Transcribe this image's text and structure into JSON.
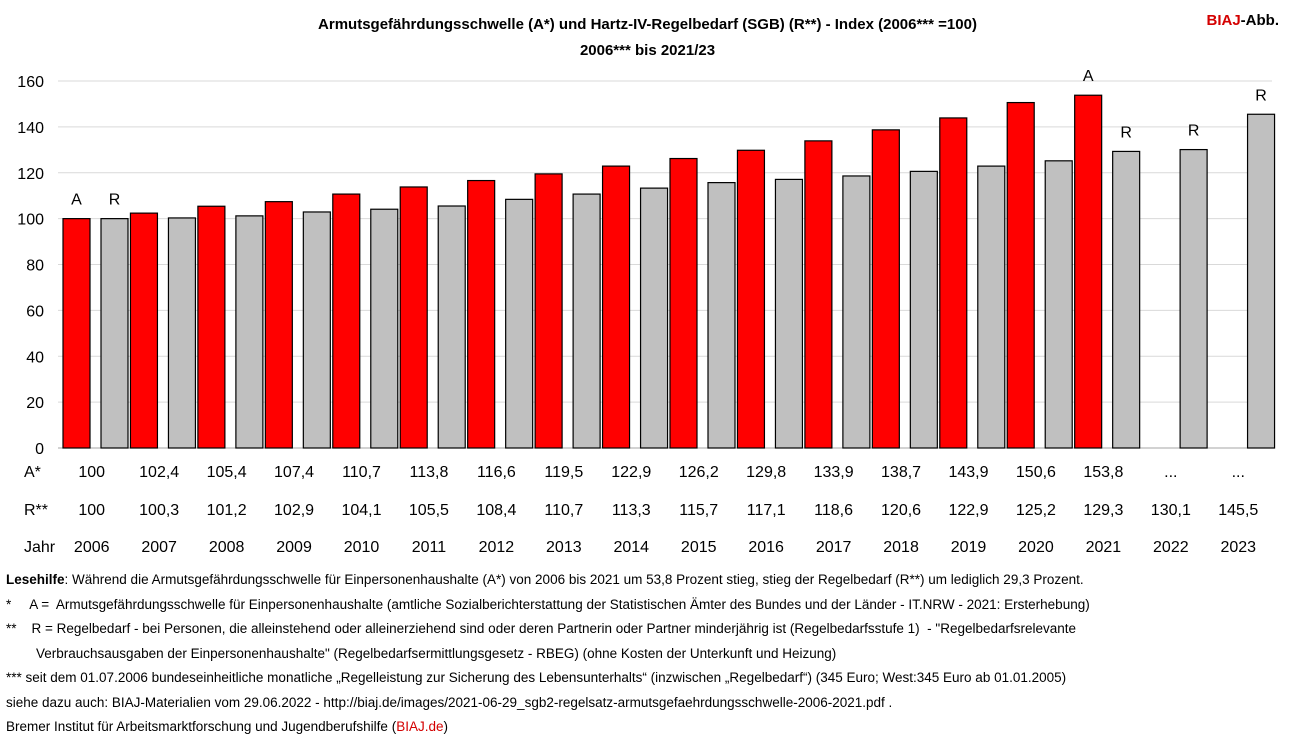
{
  "header": {
    "title_line1": "Armutsgefährdungsschwelle (A*) und Hartz-IV-Regelbedarf (SGB) (R**) - Index (2006*** =100)",
    "title_line2": "2006*** bis 2021/23",
    "logo_red": "BIAJ",
    "logo_rest": "-Abb."
  },
  "chart_data": {
    "type": "bar",
    "categories": [
      "2006",
      "2007",
      "2008",
      "2009",
      "2010",
      "2011",
      "2012",
      "2013",
      "2014",
      "2015",
      "2016",
      "2017",
      "2018",
      "2019",
      "2020",
      "2021",
      "2022",
      "2023"
    ],
    "series": [
      {
        "name": "A",
        "color": "#ff0000",
        "values": [
          100,
          102.4,
          105.4,
          107.4,
          110.7,
          113.8,
          116.6,
          119.5,
          122.9,
          126.2,
          129.8,
          133.9,
          138.7,
          143.9,
          150.6,
          153.8,
          null,
          null
        ]
      },
      {
        "name": "R",
        "color": "#c0c0c0",
        "values": [
          100,
          100.3,
          101.2,
          102.9,
          104.1,
          105.5,
          108.4,
          110.7,
          113.3,
          115.7,
          117.1,
          118.6,
          120.6,
          122.9,
          125.2,
          129.3,
          130.1,
          145.5
        ]
      }
    ],
    "ylim": [
      0,
      160
    ],
    "yticks": [
      "0",
      "20",
      "40",
      "60",
      "80",
      "100",
      "120",
      "140",
      "160"
    ],
    "grid": true,
    "table_labels": {
      "a": "A*",
      "r": "R**",
      "year": "Jahr"
    },
    "a_labels": [
      "100",
      "102,4",
      "105,4",
      "107,4",
      "110,7",
      "113,8",
      "116,6",
      "119,5",
      "122,9",
      "126,2",
      "129,8",
      "133,9",
      "138,7",
      "143,9",
      "150,6",
      "153,8",
      "...",
      "..."
    ],
    "r_labels": [
      "100",
      "100,3",
      "101,2",
      "102,9",
      "104,1",
      "105,5",
      "108,4",
      "110,7",
      "113,3",
      "115,7",
      "117,1",
      "118,6",
      "120,6",
      "122,9",
      "125,2",
      "129,3",
      "130,1",
      "145,5"
    ],
    "annotations": [
      {
        "text": "A",
        "category": "2006",
        "series": "A"
      },
      {
        "text": "R",
        "category": "2006",
        "series": "R"
      },
      {
        "text": "A",
        "category": "2021",
        "series": "A"
      },
      {
        "text": "R",
        "category": "2021",
        "series": "R"
      },
      {
        "text": "R",
        "category": "2022",
        "series": "R"
      },
      {
        "text": "R",
        "category": "2023",
        "series": "R"
      }
    ]
  },
  "notes": {
    "lesehilfe_label": "Lesehilfe",
    "lesehilfe_text": ": Während die Armutsgefährdungsschwelle für Einpersonenhaushalte (A*) von 2006 bis 2021 um 53,8 Prozent stieg, stieg der Regelbedarf (R**) um lediglich 29,3 Prozent.",
    "note1": "*     A =  Armutsgefährdungsschwelle für Einpersonenhaushalte (amtliche Sozialberichterstattung der Statistischen Ämter des Bundes und der Länder - IT.NRW - 2021: Ersterhebung)",
    "note2": "**    R = Regelbedarf - bei Personen, die alleinstehend oder alleinerziehend sind oder deren Partnerin oder Partner minderjährig ist (Regelbedarfsstufe 1)  - \"Regelbedarfsrelevante",
    "note2b": "Verbrauchsausgaben der Einpersonenhaushalte\" (Regelbedarfsermittlungsgesetz - RBEG) (ohne Kosten der Unterkunft und Heizung)",
    "note3": "*** seit dem 01.07.2006 bundeseinheitliche monatliche „Regelleistung zur Sicherung des Lebensunterhalts“ (inzwischen „Regelbedarf“) (345 Euro; West:345 Euro ab 01.01.2005)",
    "note4": "siehe dazu auch: BIAJ-Materialien vom 29.06.2022 - http://biaj.de/images/2021-06-29_sgb2-regelsatz-armutsgefaehrdungsschwelle-2006-2021.pdf .",
    "footer_text": "Bremer Institut für Arbeitsmarktforschung und Jugendberufshilfe (",
    "footer_link": "BIAJ.de",
    "footer_end": ")"
  }
}
